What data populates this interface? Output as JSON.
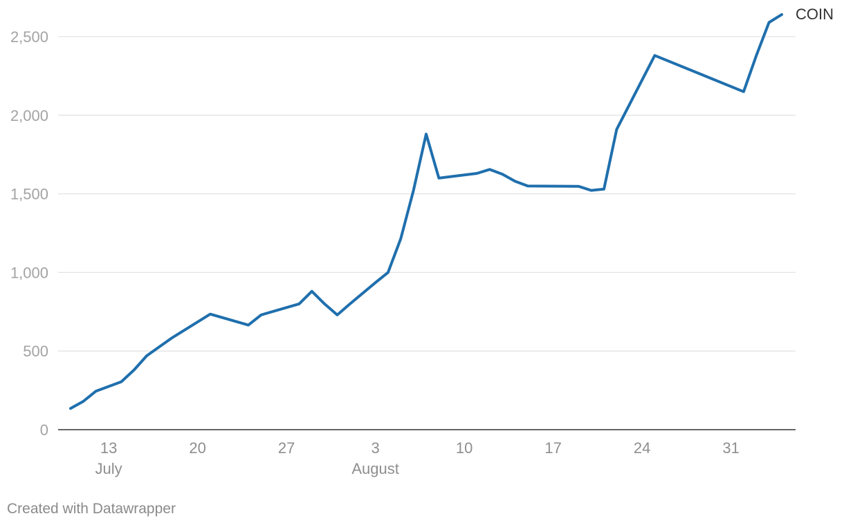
{
  "chart_data": {
    "type": "line",
    "title": "",
    "xlabel": "",
    "ylabel": "",
    "x_axis_type": "date",
    "xlim": [
      "2020-07-09",
      "2020-09-04"
    ],
    "ylim": [
      0,
      2650
    ],
    "grid": true,
    "legend": "inline label at end of line",
    "y_ticks": [
      0,
      500,
      1000,
      1500,
      2000,
      2500
    ],
    "y_tick_labels": [
      "0",
      "500",
      "1,000",
      "1,500",
      "2,000",
      "2,500"
    ],
    "x_ticks": [
      {
        "date": "2020-07-13",
        "label": "13"
      },
      {
        "date": "2020-07-20",
        "label": "20"
      },
      {
        "date": "2020-07-27",
        "label": "27"
      },
      {
        "date": "2020-08-03",
        "label": "3"
      },
      {
        "date": "2020-08-10",
        "label": "10"
      },
      {
        "date": "2020-08-17",
        "label": "17"
      },
      {
        "date": "2020-08-24",
        "label": "24"
      },
      {
        "date": "2020-08-31",
        "label": "31"
      }
    ],
    "month_labels": [
      {
        "date": "2020-07-13",
        "label": "July"
      },
      {
        "date": "2020-08-03",
        "label": "August"
      }
    ],
    "series": [
      {
        "name": "COIN",
        "color": "#1f6fad",
        "points": [
          [
            "2020-07-10",
            135
          ],
          [
            "2020-07-11",
            180
          ],
          [
            "2020-07-12",
            245
          ],
          [
            "2020-07-14",
            305
          ],
          [
            "2020-07-15",
            380
          ],
          [
            "2020-07-16",
            470
          ],
          [
            "2020-07-18",
            585
          ],
          [
            "2020-07-21",
            735
          ],
          [
            "2020-07-24",
            665
          ],
          [
            "2020-07-25",
            730
          ],
          [
            "2020-07-28",
            800
          ],
          [
            "2020-07-29",
            880
          ],
          [
            "2020-07-30",
            800
          ],
          [
            "2020-07-31",
            730
          ],
          [
            "2020-08-01",
            800
          ],
          [
            "2020-08-03",
            935
          ],
          [
            "2020-08-04",
            1000
          ],
          [
            "2020-08-05",
            1215
          ],
          [
            "2020-08-06",
            1520
          ],
          [
            "2020-08-07",
            1880
          ],
          [
            "2020-08-08",
            1600
          ],
          [
            "2020-08-11",
            1630
          ],
          [
            "2020-08-12",
            1655
          ],
          [
            "2020-08-13",
            1625
          ],
          [
            "2020-08-14",
            1580
          ],
          [
            "2020-08-15",
            1550
          ],
          [
            "2020-08-19",
            1548
          ],
          [
            "2020-08-20",
            1522
          ],
          [
            "2020-08-21",
            1530
          ],
          [
            "2020-08-22",
            1910
          ],
          [
            "2020-08-25",
            2380
          ],
          [
            "2020-09-01",
            2150
          ],
          [
            "2020-09-02",
            2380
          ],
          [
            "2020-09-03",
            2590
          ],
          [
            "2020-09-04",
            2640
          ]
        ]
      }
    ]
  },
  "footer": {
    "credit": "Created with Datawrapper"
  }
}
